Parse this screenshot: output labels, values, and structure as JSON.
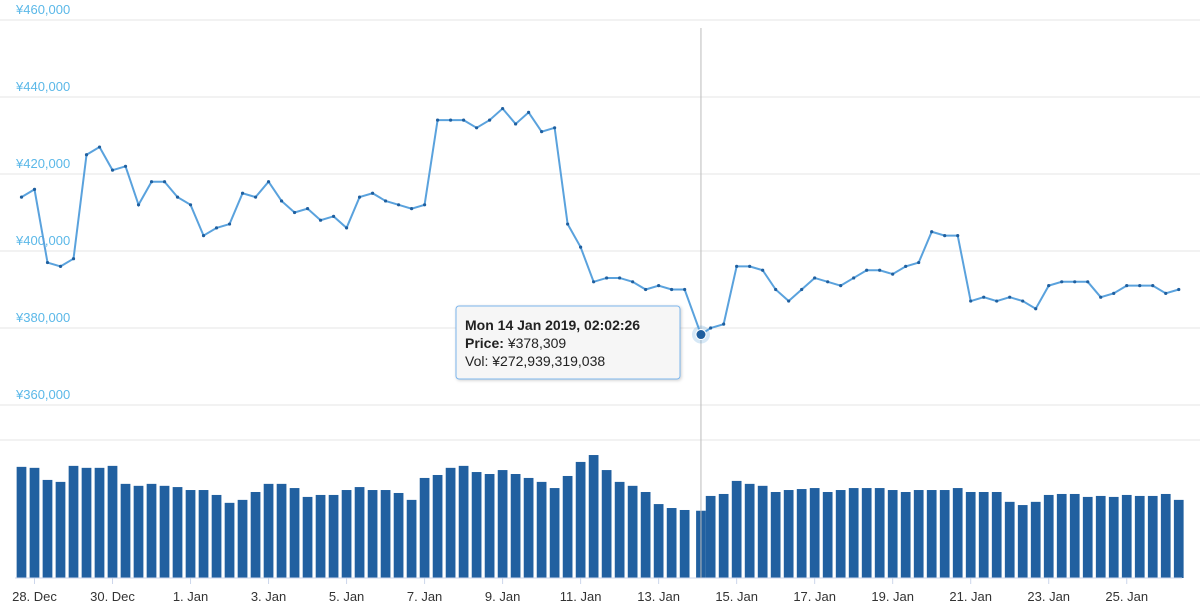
{
  "chart_data": {
    "type": "line",
    "x": [
      "2018-12-27T16:00",
      "2018-12-28T00:00",
      "2018-12-28T08:00",
      "2018-12-28T16:00",
      "2018-12-29T00:00",
      "2018-12-29T08:00",
      "2018-12-29T16:00",
      "2018-12-30T00:00",
      "2018-12-30T08:00",
      "2018-12-30T16:00",
      "2018-12-31T00:00",
      "2018-12-31T08:00",
      "2018-12-31T16:00",
      "2019-01-01T00:00",
      "2019-01-01T08:00",
      "2019-01-01T16:00",
      "2019-01-02T00:00",
      "2019-01-02T08:00",
      "2019-01-02T16:00",
      "2019-01-03T00:00",
      "2019-01-03T08:00",
      "2019-01-03T16:00",
      "2019-01-04T00:00",
      "2019-01-04T08:00",
      "2019-01-04T16:00",
      "2019-01-05T00:00",
      "2019-01-05T08:00",
      "2019-01-05T16:00",
      "2019-01-06T00:00",
      "2019-01-06T08:00",
      "2019-01-06T16:00",
      "2019-01-07T00:00",
      "2019-01-07T08:00",
      "2019-01-07T16:00",
      "2019-01-08T00:00",
      "2019-01-08T08:00",
      "2019-01-08T16:00",
      "2019-01-09T00:00",
      "2019-01-09T08:00",
      "2019-01-09T16:00",
      "2019-01-10T00:00",
      "2019-01-10T08:00",
      "2019-01-10T16:00",
      "2019-01-11T00:00",
      "2019-01-11T08:00",
      "2019-01-11T16:00",
      "2019-01-12T00:00",
      "2019-01-12T08:00",
      "2019-01-12T16:00",
      "2019-01-13T00:00",
      "2019-01-13T08:00",
      "2019-01-13T16:00",
      "2019-01-14T02:02:26",
      "2019-01-14T08:00",
      "2019-01-14T16:00",
      "2019-01-15T00:00",
      "2019-01-15T08:00",
      "2019-01-15T16:00",
      "2019-01-16T00:00",
      "2019-01-16T08:00",
      "2019-01-16T16:00",
      "2019-01-17T00:00",
      "2019-01-17T08:00",
      "2019-01-17T16:00",
      "2019-01-18T00:00",
      "2019-01-18T08:00",
      "2019-01-18T16:00",
      "2019-01-19T00:00",
      "2019-01-19T08:00",
      "2019-01-19T16:00",
      "2019-01-20T00:00",
      "2019-01-20T08:00",
      "2019-01-20T16:00",
      "2019-01-21T00:00",
      "2019-01-21T08:00",
      "2019-01-21T16:00",
      "2019-01-22T00:00",
      "2019-01-22T08:00",
      "2019-01-22T16:00",
      "2019-01-23T00:00",
      "2019-01-23T08:00",
      "2019-01-23T16:00",
      "2019-01-24T00:00",
      "2019-01-24T08:00",
      "2019-01-24T16:00",
      "2019-01-25T00:00",
      "2019-01-25T08:00",
      "2019-01-25T16:00",
      "2019-01-26T00:00",
      "2019-01-26T08:00"
    ],
    "series": [
      {
        "color": "#5aa2dd",
        "values": [
          414000,
          416000,
          397000,
          396000,
          398000,
          425000,
          427000,
          421000,
          422000,
          412000,
          418000,
          418000,
          414000,
          412000,
          404000,
          406000,
          407000,
          415000,
          414000,
          418000,
          413000,
          410000,
          411000,
          408000,
          409000,
          406000,
          414000,
          415000,
          413000,
          412000,
          411000,
          412000,
          434000,
          434000,
          434000,
          432000,
          434000,
          437000,
          433000,
          436000,
          431000,
          432000,
          407000,
          401000,
          392000,
          393000,
          393000,
          392000,
          390000,
          391000,
          390000,
          390000,
          378309,
          380000,
          381000,
          396000,
          396000,
          395000,
          390000,
          387000,
          390000,
          393000,
          392000,
          391000,
          393000,
          395000,
          395000,
          394000,
          396000,
          397000,
          405000,
          404000,
          404000,
          387000,
          388000,
          387000,
          388000,
          387000,
          385000,
          391000,
          392000,
          392000,
          392000,
          388000,
          389000,
          391000,
          391000,
          391000,
          389000,
          390000
        ]
      },
      {
        "type": "bar",
        "axis": "y2",
        "color": "#2160a0",
        "values": [
          451000000000,
          447000000000,
          398000000000,
          390000000000,
          455000000000,
          447000000000,
          447000000000,
          455000000000,
          382000000000,
          374000000000,
          382000000000,
          374000000000,
          369000000000,
          357000000000,
          357000000000,
          337000000000,
          305000000000,
          317000000000,
          349000000000,
          382000000000,
          382000000000,
          365000000000,
          329000000000,
          337000000000,
          337000000000,
          357000000000,
          369000000000,
          357000000000,
          357000000000,
          345000000000,
          317000000000,
          406000000000,
          418000000000,
          447000000000,
          455000000000,
          430000000000,
          422000000000,
          438000000000,
          422000000000,
          406000000000,
          390000000000,
          365000000000,
          414000000000,
          471000000000,
          499000000000,
          438000000000,
          390000000000,
          374000000000,
          349000000000,
          300000000000,
          284000000000,
          276000000000,
          272939319038,
          333000000000,
          341000000000,
          394000000000,
          382000000000,
          374000000000,
          349000000000,
          357000000000,
          361000000000,
          365000000000,
          349000000000,
          357000000000,
          365000000000,
          365000000000,
          365000000000,
          357000000000,
          349000000000,
          357000000000,
          357000000000,
          357000000000,
          365000000000,
          349000000000,
          349000000000,
          349000000000,
          309000000000,
          296000000000,
          309000000000,
          337000000000,
          341000000000,
          341000000000,
          329000000000,
          333000000000,
          329000000000,
          337000000000,
          333000000000,
          333000000000,
          341000000000,
          317000000000
        ]
      }
    ],
    "xlim": [
      "2018-12-27T12:00",
      "2019-01-26T10:00"
    ],
    "xticks": [
      {
        "value": "2018-12-28T00:00",
        "label": "28. Dec"
      },
      {
        "value": "2018-12-30T00:00",
        "label": "30. Dec"
      },
      {
        "value": "2019-01-01T00:00",
        "label": "1. Jan"
      },
      {
        "value": "2019-01-03T00:00",
        "label": "3. Jan"
      },
      {
        "value": "2019-01-05T00:00",
        "label": "5. Jan"
      },
      {
        "value": "2019-01-07T00:00",
        "label": "7. Jan"
      },
      {
        "value": "2019-01-09T00:00",
        "label": "9. Jan"
      },
      {
        "value": "2019-01-11T00:00",
        "label": "11. Jan"
      },
      {
        "value": "2019-01-13T00:00",
        "label": "13. Jan"
      },
      {
        "value": "2019-01-15T00:00",
        "label": "15. Jan"
      },
      {
        "value": "2019-01-17T00:00",
        "label": "17. Jan"
      },
      {
        "value": "2019-01-19T00:00",
        "label": "19. Jan"
      },
      {
        "value": "2019-01-21T00:00",
        "label": "21. Jan"
      },
      {
        "value": "2019-01-23T00:00",
        "label": "23. Jan"
      },
      {
        "value": "2019-01-25T00:00",
        "label": "25. Jan"
      }
    ],
    "ylim": [
      360000,
      460000
    ],
    "yticks": [
      {
        "value": 360000,
        "label": "¥360,000"
      },
      {
        "value": 380000,
        "label": "¥380,000"
      },
      {
        "value": 400000,
        "label": "¥400,000"
      },
      {
        "value": 420000,
        "label": "¥420,000"
      },
      {
        "value": 440000,
        "label": "¥440,000"
      },
      {
        "value": 460000,
        "label": "¥460,000"
      }
    ],
    "y2lim": [
      0,
      560000000000
    ],
    "grid": true,
    "crosshair_x": "2019-01-14T02:02:26",
    "tooltip": {
      "title": "Mon 14 Jan 2019, 02:02:26",
      "rows": [
        {
          "label": "Price:",
          "value": "¥378,309"
        },
        {
          "label": "Vol:",
          "value": "¥272,939,319,038"
        }
      ]
    }
  }
}
